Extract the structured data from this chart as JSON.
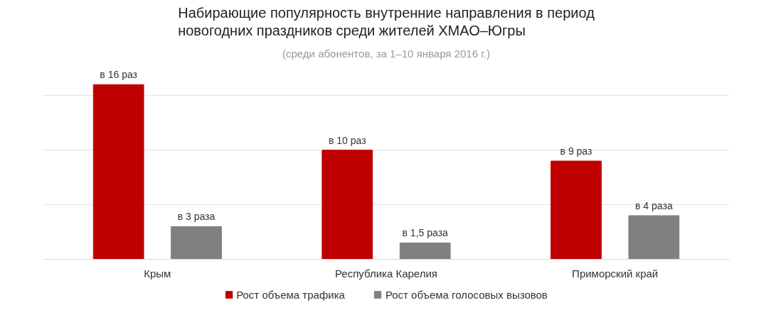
{
  "chart_data": {
    "type": "bar",
    "title": "Набирающие популярность внутренние направления в период\nновогодних праздников среди жителей ХМАО–Югры",
    "subtitle": "(среди абонентов, за 1–10 января 2016 г.)",
    "categories": [
      "Крым",
      "Республика Карелия",
      "Приморский край"
    ],
    "series": [
      {
        "name": "Рост объема трафика",
        "color": "#c00000",
        "values": [
          16,
          10,
          9
        ],
        "value_labels": [
          "в 16 раз",
          "в 10 раз",
          "в 9 раз"
        ]
      },
      {
        "name": "Рост объема голосовых вызовов",
        "color": "#808080",
        "values": [
          3,
          1.5,
          4
        ],
        "value_labels": [
          "в 3 раза",
          "в 1,5 раза",
          "в 4 раза"
        ]
      }
    ],
    "grid": "y",
    "tick_labels": "x",
    "legend": "bottom"
  }
}
